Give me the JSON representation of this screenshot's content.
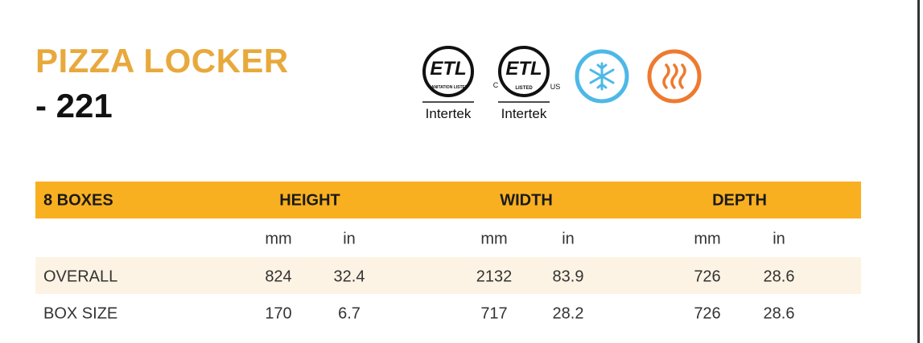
{
  "header": {
    "title": "PIZZA LOCKER",
    "subtitle": "- 221"
  },
  "certifications": [
    {
      "logo": "ETL",
      "ring": "SANITATION LISTED",
      "caption": "Intertek"
    },
    {
      "logo": "ETL",
      "ring": "LISTED",
      "left": "C",
      "right": "US",
      "caption": "Intertek"
    }
  ],
  "table": {
    "header": [
      "8 BOXES",
      "HEIGHT",
      "WIDTH",
      "DEPTH"
    ],
    "units": [
      "mm",
      "in",
      "mm",
      "in",
      "mm",
      "in"
    ],
    "rows": [
      [
        "OVERALL",
        824,
        32.4,
        2132,
        83.9,
        726,
        28.6
      ],
      [
        "BOX SIZE",
        170,
        6.7,
        717,
        28.2,
        726,
        28.6
      ]
    ]
  }
}
